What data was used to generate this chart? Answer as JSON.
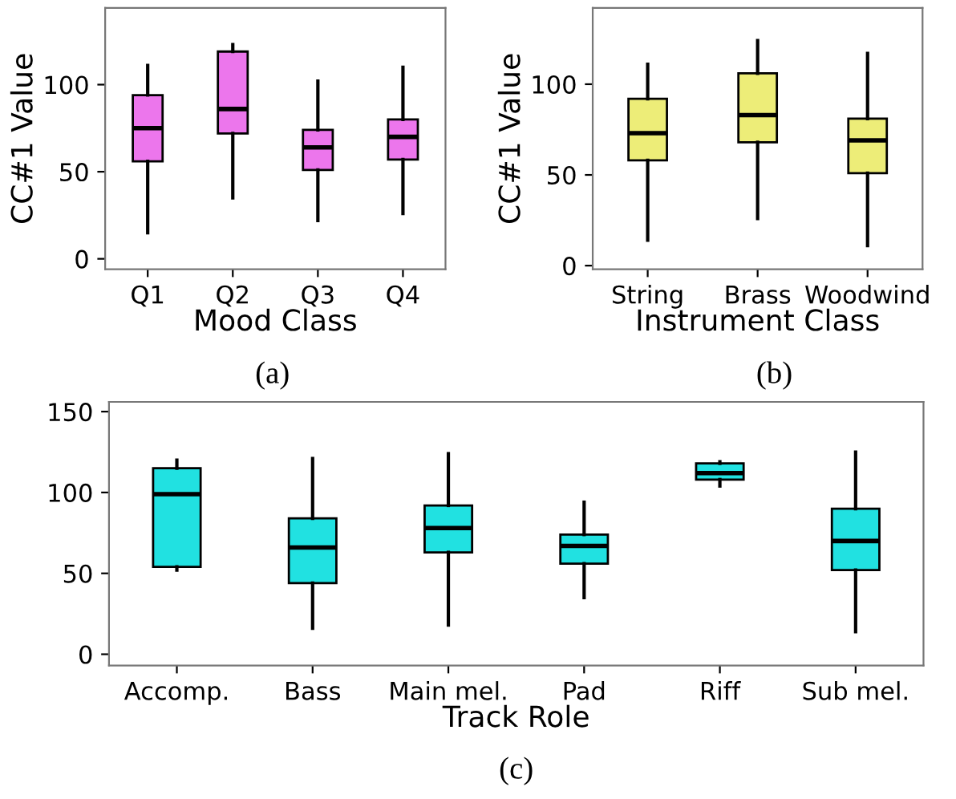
{
  "chart_data": [
    {
      "type": "box",
      "xlabel": "Mood Class",
      "ylabel": "CC#1 Value",
      "annotations": [
        "(a)"
      ],
      "categories": [
        "Q1",
        "Q2",
        "Q3",
        "Q4"
      ],
      "ylim": [
        -6,
        144
      ],
      "yticks": [
        0,
        50,
        100
      ],
      "series": [
        {
          "color": "#ec76ec",
          "boxes": [
            {
              "low": 15,
              "q1": 56,
              "median": 75,
              "q3": 94,
              "high": 111
            },
            {
              "low": 35,
              "q1": 72,
              "median": 86,
              "q3": 119,
              "high": 123
            },
            {
              "low": 22,
              "q1": 51,
              "median": 64,
              "q3": 74,
              "high": 102
            },
            {
              "low": 26,
              "q1": 57,
              "median": 70,
              "q3": 80,
              "high": 110
            }
          ]
        }
      ]
    },
    {
      "type": "box",
      "xlabel": "Instrument Class",
      "ylabel": "CC#1 Value",
      "annotations": [
        "(b)"
      ],
      "categories": [
        "String",
        "Brass",
        "Woodwind"
      ],
      "ylim": [
        -2,
        142
      ],
      "yticks": [
        0,
        50,
        100
      ],
      "series": [
        {
          "color": "#eded78",
          "boxes": [
            {
              "low": 14,
              "q1": 58,
              "median": 73,
              "q3": 92,
              "high": 111
            },
            {
              "low": 26,
              "q1": 68,
              "median": 83,
              "q3": 106,
              "high": 124
            },
            {
              "low": 11,
              "q1": 51,
              "median": 69,
              "q3": 81,
              "high": 117
            }
          ]
        }
      ]
    },
    {
      "type": "box",
      "xlabel": "Track Role",
      "annotations": [
        "(c)"
      ],
      "categories": [
        "Accomp.",
        "Bass",
        "Main mel.",
        "Pad",
        "Riff",
        "Sub mel."
      ],
      "ylim": [
        -7,
        156
      ],
      "yticks": [
        0,
        50,
        100,
        150
      ],
      "series": [
        {
          "color": "#21e1e1",
          "boxes": [
            {
              "low": 52,
              "q1": 54,
              "median": 99,
              "q3": 115,
              "high": 120
            },
            {
              "low": 16,
              "q1": 44,
              "median": 66,
              "q3": 84,
              "high": 121
            },
            {
              "low": 18,
              "q1": 63,
              "median": 78,
              "q3": 92,
              "high": 124
            },
            {
              "low": 35,
              "q1": 56,
              "median": 67,
              "q3": 74,
              "high": 94
            },
            {
              "low": 104,
              "q1": 108,
              "median": 112,
              "q3": 118,
              "high": 119
            },
            {
              "low": 14,
              "q1": 52,
              "median": 70,
              "q3": 90,
              "high": 125
            }
          ]
        }
      ]
    }
  ]
}
